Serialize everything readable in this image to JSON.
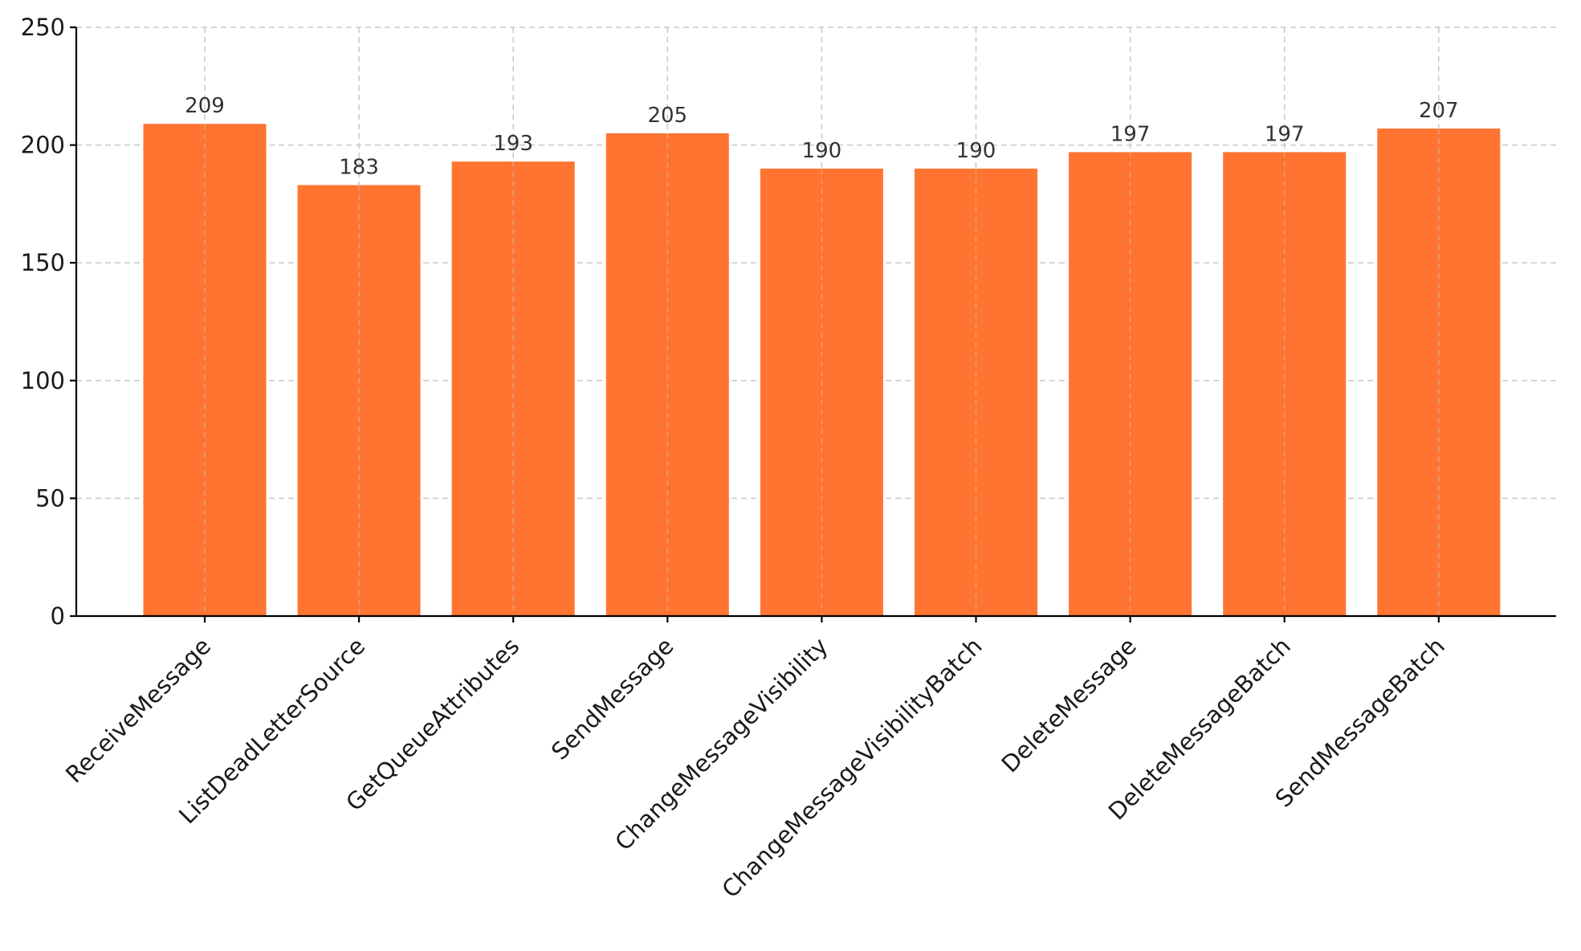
{
  "chart_data": {
    "type": "bar",
    "title": "",
    "xlabel": "",
    "ylabel": "",
    "categories": [
      "ReceiveMessage",
      "ListDeadLetterSource",
      "GetQueueAttributes",
      "SendMessage",
      "ChangeMessageVisibility",
      "ChangeMessageVisibilityBatch",
      "DeleteMessage",
      "DeleteMessageBatch",
      "SendMessageBatch"
    ],
    "values": [
      209,
      183,
      193,
      205,
      190,
      190,
      197,
      197,
      207
    ],
    "data_labels": [
      "209",
      "183",
      "193",
      "205",
      "190",
      "190",
      "197",
      "197",
      "207"
    ],
    "ylim": [
      0,
      250
    ],
    "yticks": [
      0,
      50,
      100,
      150,
      200,
      250
    ],
    "ytick_labels": [
      "0",
      "50",
      "100",
      "150",
      "200",
      "250"
    ],
    "grid": true,
    "legend": "none",
    "colors": {
      "bar": "#ff7430",
      "grid": "#c8c8c8",
      "axis": "#000000"
    }
  }
}
